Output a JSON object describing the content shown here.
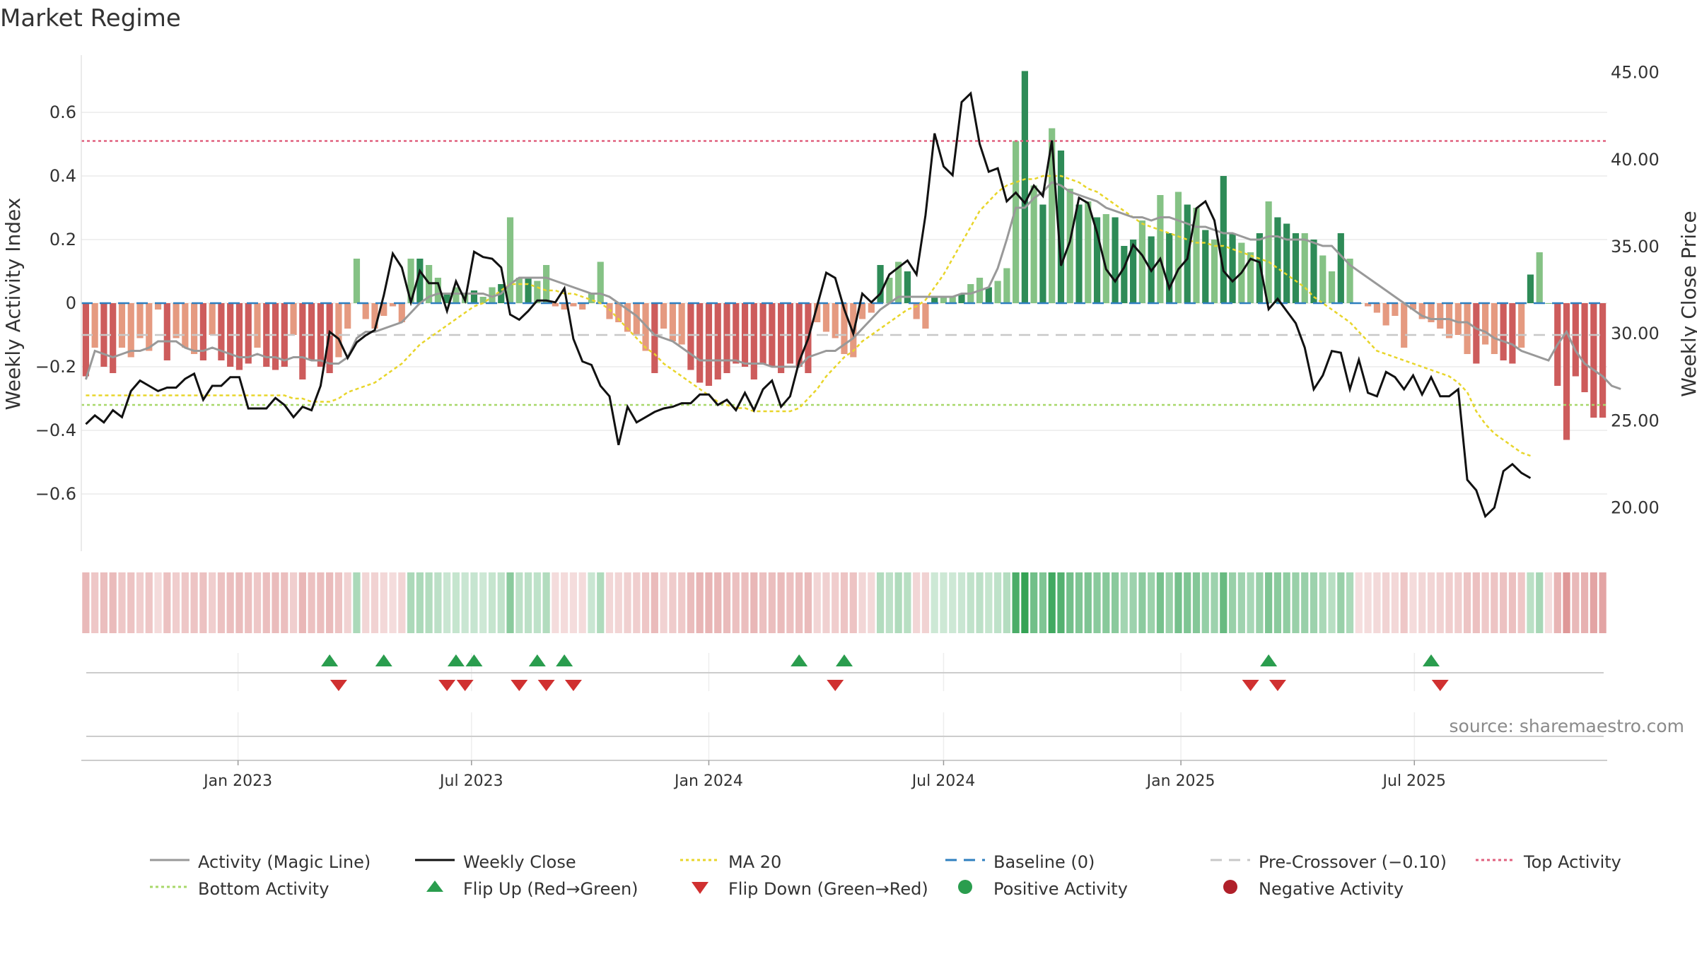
{
  "title": "Market Regime",
  "source": "source: sharemaestro.com",
  "colors": {
    "pos_dark": "#2e8b57",
    "pos_light": "#85c285",
    "neg_dark": "#cd5c5c",
    "neg_light": "#e59a80",
    "activity_line": "#999999",
    "close_line": "#111111",
    "ma20": "#e8d52a",
    "baseline": "#2f7fbf",
    "pre_crossover": "#c8c8c8",
    "top_activity": "#e0607e",
    "bottom_activity": "#a8d86a",
    "flip_up": "#2a9d4e",
    "flip_down": "#d03030"
  },
  "chart_data": {
    "type": "bar",
    "x_start": "2022-09-05",
    "x_ticks": [
      "Jan 2023",
      "Jul 2023",
      "Jan 2024",
      "Jul 2024",
      "Jan 2025",
      "Jul 2025"
    ],
    "x_tick_dates": [
      "2023-01-01",
      "2023-07-01",
      "2024-01-01",
      "2024-07-01",
      "2025-01-01",
      "2025-07-01"
    ],
    "y_left": {
      "label": "Weekly Activity Index",
      "lim": [
        -0.78,
        0.78
      ],
      "ticks": [
        0.6,
        0.4,
        0.2,
        0,
        -0.2,
        -0.4,
        -0.6
      ],
      "tick_labels": [
        "0.6",
        "0.4",
        "0.2",
        "0",
        "−0.2",
        "−0.4",
        "−0.6"
      ]
    },
    "y_right": {
      "label": "Weekly Close Price",
      "lim": [
        17.5,
        46.0
      ],
      "ticks": [
        45,
        40,
        35,
        30,
        25,
        20
      ],
      "tick_labels": [
        "45.00",
        "40.00",
        "35.00",
        "30.00",
        "25.00",
        "20.00"
      ]
    },
    "grid": true,
    "levels": {
      "top_activity": 0.51,
      "bottom_activity": -0.32,
      "pre_crossover": -0.1,
      "baseline": 0
    },
    "activity": [
      -0.23,
      -0.14,
      -0.2,
      -0.22,
      -0.14,
      -0.17,
      -0.11,
      -0.15,
      -0.02,
      -0.18,
      -0.11,
      -0.14,
      -0.16,
      -0.18,
      -0.1,
      -0.18,
      -0.2,
      -0.21,
      -0.19,
      -0.14,
      -0.2,
      -0.21,
      -0.2,
      -0.1,
      -0.24,
      -0.18,
      -0.2,
      -0.22,
      -0.17,
      -0.08,
      0.14,
      -0.05,
      -0.08,
      -0.04,
      -0.01,
      -0.06,
      0.14,
      0.14,
      0.12,
      0.08,
      0.03,
      0.05,
      0.03,
      0.04,
      0.02,
      0.05,
      0.06,
      0.27,
      0.08,
      0.08,
      0.07,
      0.12,
      -0.01,
      -0.02,
      -0.01,
      -0.02,
      0.03,
      0.13,
      -0.05,
      -0.06,
      -0.09,
      -0.1,
      -0.15,
      -0.22,
      -0.08,
      -0.12,
      -0.13,
      -0.21,
      -0.25,
      -0.26,
      -0.24,
      -0.22,
      -0.19,
      -0.2,
      -0.24,
      -0.19,
      -0.2,
      -0.22,
      -0.19,
      -0.2,
      -0.22,
      -0.06,
      -0.09,
      -0.11,
      -0.16,
      -0.17,
      -0.05,
      -0.03,
      0.12,
      0.08,
      0.13,
      0.1,
      -0.05,
      -0.08,
      0.02,
      0.02,
      0.02,
      0.03,
      0.06,
      0.08,
      0.05,
      0.07,
      0.11,
      0.51,
      0.73,
      0.37,
      0.31,
      0.55,
      0.48,
      0.36,
      0.31,
      0.32,
      0.27,
      0.28,
      0.27,
      0.18,
      0.2,
      0.26,
      0.21,
      0.34,
      0.22,
      0.35,
      0.31,
      0.3,
      0.23,
      0.2,
      0.4,
      0.22,
      0.19,
      0.16,
      0.22,
      0.32,
      0.27,
      0.25,
      0.22,
      0.22,
      0.2,
      0.15,
      0.1,
      0.22,
      0.14,
      0.0,
      -0.01,
      -0.03,
      -0.07,
      -0.04,
      -0.14,
      -0.02,
      -0.05,
      -0.06,
      -0.08,
      -0.11,
      -0.1,
      -0.16,
      -0.19,
      -0.13,
      -0.16,
      -0.18,
      -0.19,
      -0.14,
      0.09,
      0.16,
      0.0,
      -0.26,
      -0.43,
      -0.23,
      -0.28,
      -0.36,
      -0.36
    ],
    "activity_magic_line": [
      -0.24,
      -0.15,
      -0.16,
      -0.17,
      -0.16,
      -0.15,
      -0.15,
      -0.14,
      -0.12,
      -0.12,
      -0.12,
      -0.14,
      -0.15,
      -0.15,
      -0.14,
      -0.15,
      -0.16,
      -0.17,
      -0.17,
      -0.16,
      -0.17,
      -0.17,
      -0.18,
      -0.17,
      -0.17,
      -0.18,
      -0.18,
      -0.19,
      -0.19,
      -0.17,
      -0.11,
      -0.09,
      -0.09,
      -0.08,
      -0.07,
      -0.06,
      -0.03,
      0.0,
      0.02,
      0.03,
      0.03,
      0.03,
      0.03,
      0.03,
      0.03,
      0.02,
      0.03,
      0.06,
      0.08,
      0.08,
      0.08,
      0.08,
      0.07,
      0.06,
      0.05,
      0.04,
      0.03,
      0.03,
      0.02,
      0.0,
      -0.02,
      -0.04,
      -0.07,
      -0.1,
      -0.11,
      -0.12,
      -0.14,
      -0.16,
      -0.18,
      -0.18,
      -0.18,
      -0.18,
      -0.18,
      -0.19,
      -0.19,
      -0.19,
      -0.2,
      -0.2,
      -0.2,
      -0.2,
      -0.17,
      -0.16,
      -0.15,
      -0.15,
      -0.13,
      -0.11,
      -0.08,
      -0.05,
      -0.02,
      0.0,
      0.02,
      0.02,
      0.02,
      0.02,
      0.02,
      0.02,
      0.02,
      0.03,
      0.03,
      0.04,
      0.05,
      0.11,
      0.2,
      0.3,
      0.3,
      0.33,
      0.35,
      0.38,
      0.37,
      0.35,
      0.34,
      0.33,
      0.32,
      0.3,
      0.29,
      0.28,
      0.27,
      0.27,
      0.26,
      0.27,
      0.27,
      0.26,
      0.25,
      0.24,
      0.24,
      0.23,
      0.22,
      0.22,
      0.21,
      0.2,
      0.2,
      0.21,
      0.21,
      0.2,
      0.2,
      0.2,
      0.19,
      0.18,
      0.18,
      0.15,
      0.12,
      0.1,
      0.08,
      0.06,
      0.04,
      0.02,
      0.0,
      -0.02,
      -0.04,
      -0.05,
      -0.05,
      -0.05,
      -0.06,
      -0.06,
      -0.08,
      -0.09,
      -0.11,
      -0.12,
      -0.13,
      -0.15,
      -0.16,
      -0.17,
      -0.18,
      -0.13,
      -0.09,
      -0.15,
      -0.19,
      -0.21,
      -0.23,
      -0.26,
      -0.27
    ],
    "weekly_close": [
      24.8,
      25.3,
      24.9,
      25.6,
      25.2,
      26.7,
      27.3,
      27.0,
      26.7,
      26.9,
      26.9,
      27.4,
      27.7,
      26.2,
      27.0,
      27.0,
      27.5,
      27.5,
      25.7,
      25.7,
      25.7,
      26.3,
      25.9,
      25.2,
      25.8,
      25.6,
      27.0,
      30.1,
      29.7,
      28.6,
      29.5,
      29.9,
      30.2,
      32.2,
      34.6,
      33.8,
      31.8,
      33.6,
      32.9,
      32.9,
      31.3,
      33.0,
      31.9,
      34.7,
      34.4,
      34.3,
      33.8,
      31.1,
      30.8,
      31.3,
      31.9,
      31.9,
      31.8,
      32.6,
      29.7,
      28.4,
      28.2,
      27.0,
      26.4,
      23.6,
      25.8,
      24.9,
      25.2,
      25.5,
      25.7,
      25.8,
      26.0,
      26.0,
      26.5,
      26.5,
      25.9,
      26.2,
      25.6,
      26.6,
      25.6,
      26.8,
      27.3,
      25.8,
      26.4,
      28.4,
      29.7,
      31.6,
      33.5,
      33.2,
      31.4,
      30.0,
      32.3,
      31.8,
      32.3,
      33.4,
      33.8,
      34.2,
      33.4,
      36.8,
      41.5,
      39.6,
      39.1,
      43.3,
      43.8,
      40.9,
      39.3,
      39.5,
      37.6,
      38.1,
      37.5,
      38.5,
      37.9,
      41.1,
      33.9,
      35.3,
      37.8,
      37.5,
      35.8,
      33.7,
      33.0,
      33.8,
      35.1,
      34.5,
      33.6,
      34.3,
      32.6,
      33.7,
      34.3,
      37.2,
      37.6,
      36.5,
      33.6,
      33.0,
      33.5,
      34.3,
      34.1,
      31.4,
      32.0,
      31.3,
      30.6,
      29.2,
      26.8,
      27.6,
      29.0,
      28.9,
      26.8,
      28.5,
      26.6,
      26.4,
      27.8,
      27.5,
      26.8,
      27.6,
      26.5,
      27.5,
      26.4,
      26.4,
      26.8,
      21.6,
      21.0,
      19.5,
      20.0,
      22.1,
      22.5,
      22.0,
      21.7
    ],
    "ma20": [
      -0.29,
      -0.29,
      -0.29,
      -0.29,
      -0.29,
      -0.29,
      -0.29,
      -0.29,
      -0.29,
      -0.29,
      -0.29,
      -0.29,
      -0.29,
      -0.29,
      -0.29,
      -0.29,
      -0.29,
      -0.29,
      -0.29,
      -0.29,
      -0.29,
      -0.29,
      -0.29,
      -0.3,
      -0.3,
      -0.31,
      -0.31,
      -0.31,
      -0.3,
      -0.28,
      -0.27,
      -0.26,
      -0.25,
      -0.23,
      -0.21,
      -0.19,
      -0.16,
      -0.13,
      -0.11,
      -0.09,
      -0.07,
      -0.05,
      -0.03,
      -0.01,
      0.0,
      0.02,
      0.04,
      0.06,
      0.06,
      0.06,
      0.05,
      0.04,
      0.04,
      0.03,
      0.03,
      0.02,
      0.01,
      0.0,
      -0.02,
      -0.05,
      -0.08,
      -0.11,
      -0.14,
      -0.16,
      -0.19,
      -0.21,
      -0.23,
      -0.25,
      -0.27,
      -0.29,
      -0.31,
      -0.32,
      -0.33,
      -0.33,
      -0.34,
      -0.34,
      -0.34,
      -0.34,
      -0.34,
      -0.33,
      -0.3,
      -0.27,
      -0.23,
      -0.2,
      -0.17,
      -0.15,
      -0.12,
      -0.1,
      -0.08,
      -0.06,
      -0.04,
      -0.02,
      -0.01,
      0.01,
      0.05,
      0.09,
      0.14,
      0.19,
      0.24,
      0.29,
      0.32,
      0.35,
      0.37,
      0.38,
      0.39,
      0.39,
      0.4,
      0.4,
      0.4,
      0.39,
      0.38,
      0.36,
      0.35,
      0.33,
      0.31,
      0.29,
      0.27,
      0.25,
      0.24,
      0.23,
      0.22,
      0.21,
      0.2,
      0.19,
      0.19,
      0.18,
      0.18,
      0.17,
      0.16,
      0.15,
      0.14,
      0.13,
      0.11,
      0.09,
      0.07,
      0.05,
      0.02,
      0.0,
      -0.02,
      -0.04,
      -0.06,
      -0.09,
      -0.12,
      -0.15,
      -0.16,
      -0.17,
      -0.18,
      -0.19,
      -0.2,
      -0.21,
      -0.22,
      -0.23,
      -0.25,
      -0.28,
      -0.34,
      -0.38,
      -0.41,
      -0.43,
      -0.45,
      -0.47,
      -0.48
    ],
    "flip_up_weeks": [
      27,
      33,
      41,
      43,
      50,
      53,
      79,
      84,
      131,
      149
    ],
    "flip_down_weeks": [
      28,
      40,
      42,
      48,
      51,
      54,
      83,
      129,
      132,
      150
    ]
  },
  "legend": [
    {
      "label": "Activity (Magic Line)",
      "symbol": "line-grey"
    },
    {
      "label": "Weekly Close",
      "symbol": "line-black"
    },
    {
      "label": "MA 20",
      "symbol": "dotted-yellow"
    },
    {
      "label": "Baseline (0)",
      "symbol": "dash-blue"
    },
    {
      "label": "Pre-Crossover (−0.10)",
      "symbol": "dash-grey"
    },
    {
      "label": "Top Activity",
      "symbol": "dotted-pink"
    },
    {
      "label": "Bottom Activity",
      "symbol": "dotted-green"
    },
    {
      "label": "Flip Up (Red→Green)",
      "symbol": "triangle-up"
    },
    {
      "label": "Flip Down (Green→Red)",
      "symbol": "triangle-down"
    },
    {
      "label": "Positive Activity",
      "symbol": "dot-green"
    },
    {
      "label": "Negative Activity",
      "symbol": "dot-red"
    }
  ]
}
